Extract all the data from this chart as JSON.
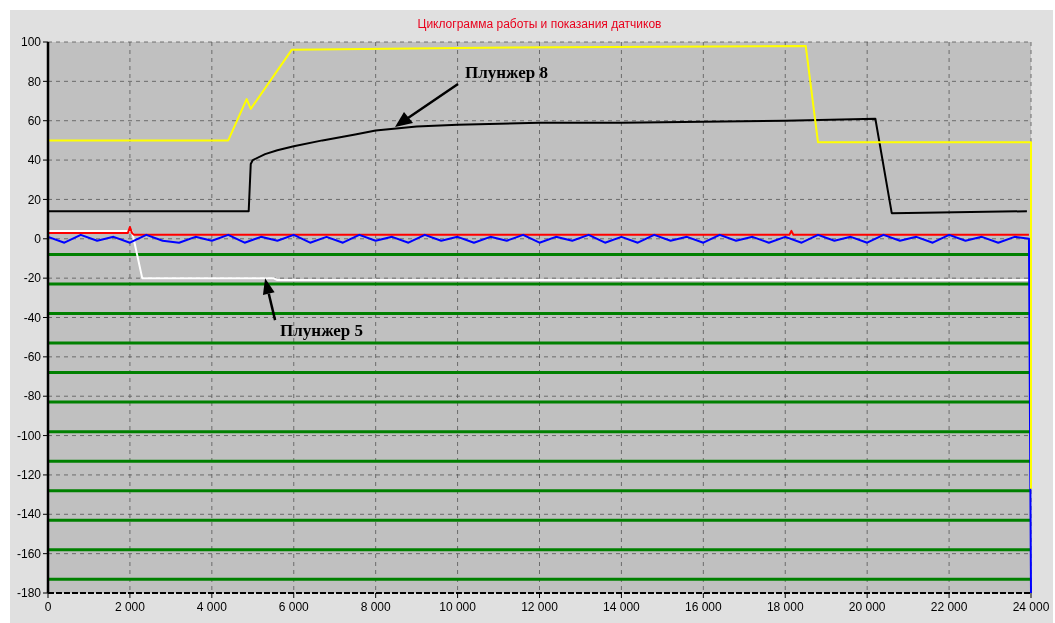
{
  "chart_data": {
    "type": "line",
    "title": "Циклограмма работы и показания датчиков",
    "xlim": [
      0,
      24000
    ],
    "ylim": [
      -180,
      100
    ],
    "xticks": [
      0,
      {
        "value": 2000,
        "label": "2 000"
      },
      {
        "value": 4000,
        "label": "4 000"
      },
      {
        "value": 6000,
        "label": "6 000"
      },
      {
        "value": 8000,
        "label": "8 000"
      },
      {
        "value": 10000,
        "label": "10 000"
      },
      {
        "value": 12000,
        "label": "12 000"
      },
      {
        "value": 14000,
        "label": "14 000"
      },
      {
        "value": 16000,
        "label": "16 000"
      },
      {
        "value": 18000,
        "label": "18 000"
      },
      {
        "value": 20000,
        "label": "20 000"
      },
      {
        "value": 22000,
        "label": "22 000"
      },
      {
        "value": 24000,
        "label": "24 000"
      }
    ],
    "yticks": [
      -180,
      -160,
      -140,
      -120,
      -100,
      -80,
      -60,
      -40,
      -20,
      0,
      20,
      40,
      60,
      80,
      100
    ],
    "grid": true,
    "line_style": "solid",
    "marker": "none",
    "series": [
      {
        "color": "#008000",
        "x": [
          0,
          24000
        ],
        "values": [
          -8,
          -8
        ]
      },
      {
        "color": "#008000",
        "x": [
          0,
          24000
        ],
        "values": [
          -23,
          -23
        ]
      },
      {
        "color": "#008000",
        "x": [
          0,
          24000
        ],
        "values": [
          -38,
          -38
        ]
      },
      {
        "color": "#008000",
        "x": [
          0,
          24000
        ],
        "values": [
          -53,
          -53
        ]
      },
      {
        "color": "#008000",
        "x": [
          0,
          24000
        ],
        "values": [
          -68,
          -68
        ]
      },
      {
        "color": "#008000",
        "x": [
          0,
          24000
        ],
        "values": [
          -83,
          -83
        ]
      },
      {
        "color": "#008000",
        "x": [
          0,
          24000
        ],
        "values": [
          -98,
          -98
        ]
      },
      {
        "color": "#008000",
        "x": [
          0,
          24000
        ],
        "values": [
          -113,
          -113
        ]
      },
      {
        "color": "#008000",
        "x": [
          0,
          24000
        ],
        "values": [
          -128,
          -128
        ]
      },
      {
        "color": "#008000",
        "x": [
          0,
          24000
        ],
        "values": [
          -143,
          -143
        ]
      },
      {
        "color": "#008000",
        "x": [
          0,
          24000
        ],
        "values": [
          -158,
          -158
        ]
      },
      {
        "color": "#008000",
        "x": [
          0,
          24000
        ],
        "values": [
          -173,
          -173
        ]
      },
      {
        "color": "#ffffff",
        "x": [
          0,
          2050,
          2300,
          5500,
          5600,
          23950
        ],
        "values": [
          4,
          4,
          -20,
          -20,
          -21,
          -21
        ]
      },
      {
        "color": "#ff0000",
        "x": [
          0,
          1950,
          2000,
          2050,
          2100,
          18100,
          18150,
          18200,
          23950
        ],
        "values": [
          3,
          3,
          6,
          3,
          2,
          2,
          4,
          2,
          2
        ]
      },
      {
        "color": "#0000ff",
        "x": [
          0,
          400,
          800,
          1200,
          1600,
          2000,
          2400,
          2800,
          3200,
          3600,
          4000,
          4400,
          4800,
          5200,
          5600,
          6000,
          6400,
          6800,
          7200,
          7600,
          8000,
          8400,
          8800,
          9200,
          9600,
          10000,
          10400,
          10800,
          11200,
          11600,
          12000,
          12400,
          12800,
          13200,
          13600,
          14000,
          14400,
          14800,
          15200,
          15600,
          16000,
          16400,
          16800,
          17200,
          17600,
          18000,
          18400,
          18800,
          19200,
          19600,
          20000,
          20400,
          20800,
          21200,
          21600,
          22000,
          22400,
          22800,
          23200,
          23600,
          23950,
          24000
        ],
        "values": [
          1,
          -2,
          2,
          -1,
          1,
          -2,
          2,
          -1,
          -2,
          1,
          -1,
          2,
          -2,
          1,
          -1,
          2,
          -2,
          1,
          -2,
          2,
          -1,
          1,
          -2,
          2,
          -1,
          1,
          -2,
          1,
          -1,
          2,
          -2,
          1,
          -1,
          2,
          -2,
          1,
          -2,
          2,
          -1,
          1,
          -2,
          2,
          -1,
          1,
          -2,
          1,
          -2,
          2,
          -1,
          1,
          -2,
          2,
          -1,
          1,
          -2,
          2,
          -1,
          1,
          -2,
          1,
          0,
          -180
        ]
      },
      {
        "color": "#000000",
        "x": [
          0,
          4900,
          4950,
          5000,
          5300,
          5600,
          6000,
          6700,
          7500,
          8000,
          9000,
          10000,
          12000,
          14000,
          16000,
          18000,
          20200,
          20600,
          23900
        ],
        "values": [
          14,
          14,
          38,
          40,
          43,
          45,
          47,
          50,
          53,
          55,
          57,
          58,
          59,
          59,
          59.5,
          60,
          61,
          13,
          14
        ]
      },
      {
        "color": "#ffff00",
        "x": [
          0,
          4400,
          4850,
          4950,
          5950,
          10000,
          18500,
          18800,
          24000,
          24000
        ],
        "values": [
          50,
          50,
          71,
          66,
          96,
          97,
          98,
          49,
          49,
          -127
        ]
      }
    ],
    "annotations": [
      "Плунжер 8",
      {
        "text": "Плунжер 5",
        "x": 5300,
        "y": -20
      }
    ]
  }
}
